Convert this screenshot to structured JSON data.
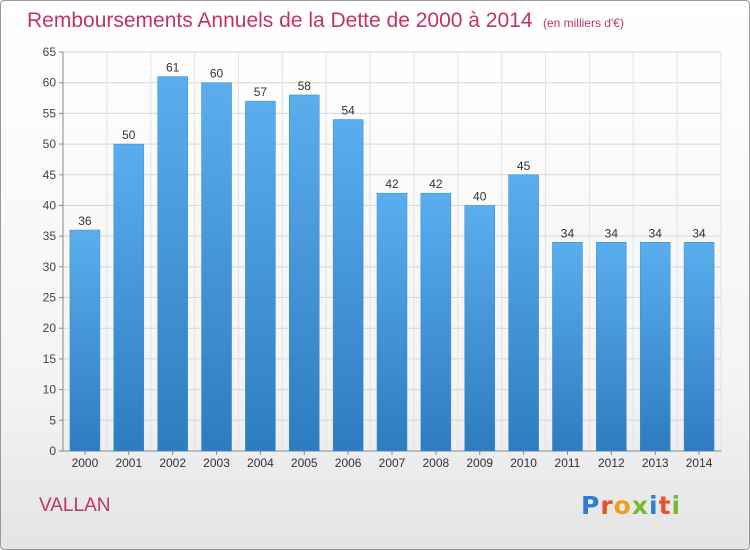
{
  "chart_data": {
    "type": "bar",
    "title": "Remboursements Annuels de la Dette de 2000 à 2014",
    "subtitle": "(en milliers d'€)",
    "categories": [
      "2000",
      "2001",
      "2002",
      "2003",
      "2004",
      "2005",
      "2006",
      "2007",
      "2008",
      "2009",
      "2010",
      "2011",
      "2012",
      "2013",
      "2014"
    ],
    "values": [
      36,
      50,
      61,
      60,
      57,
      58,
      54,
      42,
      42,
      40,
      45,
      34,
      34,
      34,
      34
    ],
    "ylim": [
      0,
      65
    ],
    "yticks": [
      0,
      5,
      10,
      15,
      20,
      25,
      30,
      35,
      40,
      45,
      50,
      55,
      60,
      65
    ],
    "grid": true,
    "bar_color": "#4a9ee0"
  },
  "commune": "VALLAN",
  "logo": {
    "text": "Proxiti",
    "letters": [
      {
        "ch": "P",
        "color": "#2f7fd0"
      },
      {
        "ch": "r",
        "color": "#e8542a"
      },
      {
        "ch": "o",
        "color": "#f0a020"
      },
      {
        "ch": "x",
        "color": "#7ab834"
      },
      {
        "ch": "i",
        "color": "#2f7fd0"
      },
      {
        "ch": "t",
        "color": "#e8542a"
      },
      {
        "ch": "i",
        "color": "#7ab834"
      }
    ]
  }
}
